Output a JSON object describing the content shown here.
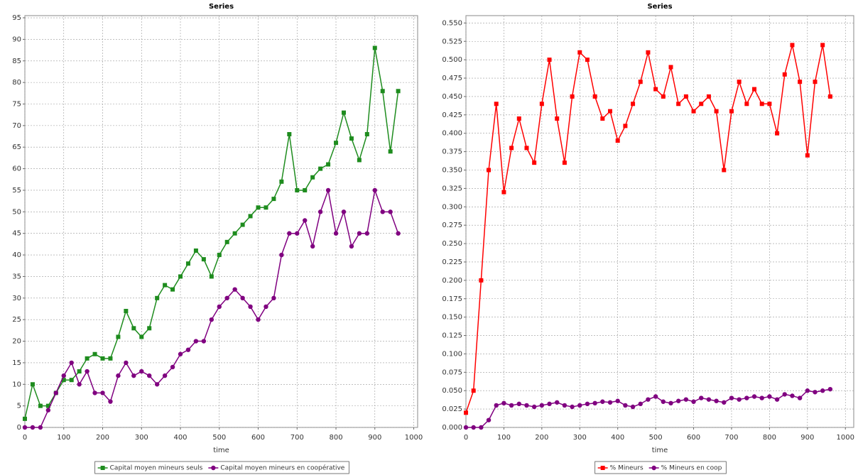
{
  "chart_data": [
    {
      "type": "line",
      "title": "Series",
      "xlabel": "time",
      "xlim": [
        0,
        1010
      ],
      "ylim": [
        0,
        95.5
      ],
      "xticks": [
        0,
        100,
        200,
        300,
        400,
        500,
        600,
        700,
        800,
        900,
        1000
      ],
      "yticks": [
        0,
        5,
        10,
        15,
        20,
        25,
        30,
        35,
        40,
        45,
        50,
        55,
        60,
        65,
        70,
        75,
        80,
        85,
        90,
        95
      ],
      "grid": true,
      "legend": "bottom",
      "x": [
        0,
        20,
        40,
        60,
        80,
        100,
        120,
        140,
        160,
        180,
        200,
        220,
        240,
        260,
        280,
        300,
        320,
        340,
        360,
        380,
        400,
        420,
        440,
        460,
        480,
        500,
        520,
        540,
        560,
        580,
        600,
        620,
        640,
        660,
        680,
        700,
        720,
        740,
        760,
        780,
        800,
        820,
        840,
        860,
        880,
        900,
        920,
        940,
        960
      ],
      "series": [
        {
          "name": "Capital moyen mineurs seuls",
          "color": "#1e8c1e",
          "marker": "square",
          "values": [
            2,
            10,
            5,
            5,
            8,
            11,
            11,
            13,
            16,
            17,
            16,
            16,
            21,
            27,
            23,
            21,
            23,
            30,
            33,
            32,
            35,
            38,
            41,
            39,
            35,
            40,
            43,
            45,
            47,
            49,
            51,
            51,
            53,
            57,
            68,
            55,
            55,
            58,
            60,
            61,
            66,
            73,
            67,
            62,
            68,
            88,
            78,
            64,
            78
          ]
        },
        {
          "name": "Capital moyen mineurs en coopérative",
          "color": "#800080",
          "marker": "circle",
          "values": [
            0,
            0,
            0,
            4,
            8,
            12,
            15,
            10,
            13,
            8,
            8,
            6,
            12,
            15,
            12,
            13,
            12,
            10,
            12,
            14,
            17,
            18,
            20,
            20,
            25,
            28,
            30,
            32,
            30,
            28,
            25,
            28,
            30,
            40,
            45,
            45,
            48,
            42,
            50,
            55,
            45,
            50,
            42,
            45,
            45,
            55,
            50,
            50,
            45
          ]
        }
      ]
    },
    {
      "type": "line",
      "title": "Series",
      "xlabel": "time",
      "xlim": [
        0,
        1022
      ],
      "ylim": [
        0,
        0.56
      ],
      "xticks": [
        0,
        100,
        200,
        300,
        400,
        500,
        600,
        700,
        800,
        900,
        1000
      ],
      "yticks": [
        {
          "value": 0,
          "label": "0.000"
        },
        {
          "value": 0.025,
          "label": "0.025"
        },
        {
          "value": 0.05,
          "label": "0.050"
        },
        {
          "value": 0.075,
          "label": "0.075"
        },
        {
          "value": 0.1,
          "label": "0.100"
        },
        {
          "value": 0.125,
          "label": "0.125"
        },
        {
          "value": 0.15,
          "label": "0.150"
        },
        {
          "value": 0.175,
          "label": "0.175"
        },
        {
          "value": 0.2,
          "label": "0.200"
        },
        {
          "value": 0.225,
          "label": "0.225"
        },
        {
          "value": 0.25,
          "label": "0.250"
        },
        {
          "value": 0.275,
          "label": "0.275"
        },
        {
          "value": 0.3,
          "label": "0.300"
        },
        {
          "value": 0.325,
          "label": "0.325"
        },
        {
          "value": 0.35,
          "label": "0.350"
        },
        {
          "value": 0.375,
          "label": "0.375"
        },
        {
          "value": 0.4,
          "label": "0.400"
        },
        {
          "value": 0.425,
          "label": "0.425"
        },
        {
          "value": 0.45,
          "label": "0.450"
        },
        {
          "value": 0.475,
          "label": "0.475"
        },
        {
          "value": 0.5,
          "label": "0.500"
        },
        {
          "value": 0.525,
          "label": "0.525"
        },
        {
          "value": 0.55,
          "label": "0.550"
        }
      ],
      "grid": true,
      "legend": "bottom",
      "x": [
        0,
        20,
        40,
        60,
        80,
        100,
        120,
        140,
        160,
        180,
        200,
        220,
        240,
        260,
        280,
        300,
        320,
        340,
        360,
        380,
        400,
        420,
        440,
        460,
        480,
        500,
        520,
        540,
        560,
        580,
        600,
        620,
        640,
        660,
        680,
        700,
        720,
        740,
        760,
        780,
        800,
        820,
        840,
        860,
        880,
        900,
        920,
        940,
        960
      ],
      "series": [
        {
          "name": "% Mineurs",
          "color": "#ff0000",
          "marker": "square",
          "values": [
            0.02,
            0.05,
            0.2,
            0.35,
            0.44,
            0.32,
            0.38,
            0.42,
            0.38,
            0.36,
            0.44,
            0.5,
            0.42,
            0.36,
            0.45,
            0.51,
            0.5,
            0.45,
            0.42,
            0.43,
            0.39,
            0.41,
            0.44,
            0.47,
            0.51,
            0.46,
            0.45,
            0.49,
            0.44,
            0.45,
            0.43,
            0.44,
            0.45,
            0.43,
            0.35,
            0.43,
            0.47,
            0.44,
            0.46,
            0.44,
            0.44,
            0.4,
            0.48,
            0.52,
            0.47,
            0.37,
            0.47,
            0.52,
            0.45
          ]
        },
        {
          "name": "% Mineurs en coop",
          "color": "#800080",
          "marker": "circle",
          "values": [
            0,
            0,
            0,
            0.01,
            0.03,
            0.033,
            0.03,
            0.032,
            0.03,
            0.028,
            0.03,
            0.032,
            0.034,
            0.03,
            0.028,
            0.03,
            0.032,
            0.033,
            0.035,
            0.034,
            0.036,
            0.03,
            0.028,
            0.032,
            0.038,
            0.042,
            0.035,
            0.033,
            0.036,
            0.038,
            0.035,
            0.04,
            0.038,
            0.036,
            0.034,
            0.04,
            0.038,
            0.04,
            0.042,
            0.04,
            0.042,
            0.038,
            0.045,
            0.043,
            0.04,
            0.05,
            0.048,
            0.05,
            0.052
          ]
        }
      ]
    }
  ]
}
